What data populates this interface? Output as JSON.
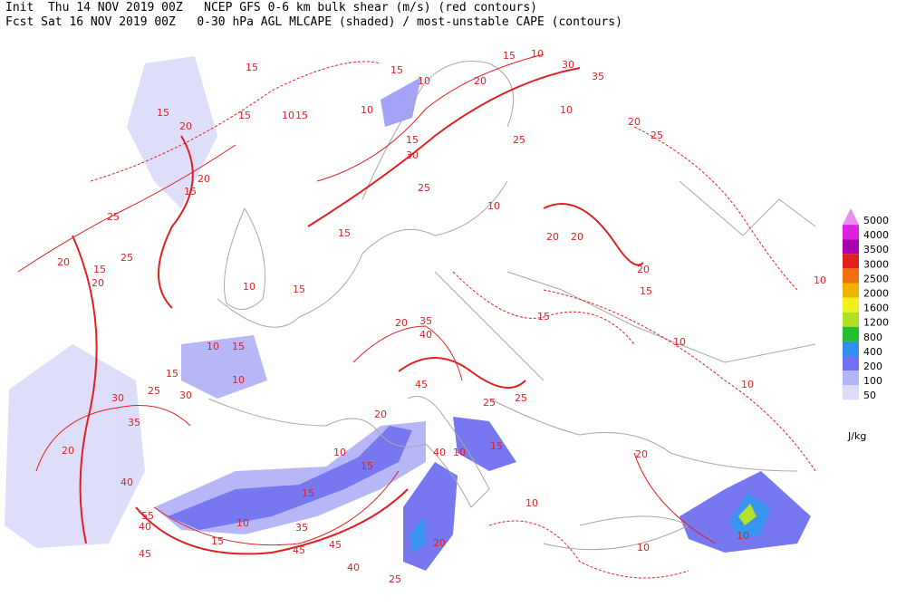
{
  "header": {
    "line1": "Init  Thu 14 NOV 2019 00Z   NCEP GFS 0-6 km bulk shear (m/s) (red contours)",
    "line2": "Fcst Sat 16 NOV 2019 00Z   0-30 hPa AGL MLCAPE (shaded) / most-unstable CAPE (contours)"
  },
  "legend": {
    "unit": "J/kg",
    "items": [
      {
        "label": 5000,
        "color": "#e890f0"
      },
      {
        "label": 4000,
        "color": "#e020e0"
      },
      {
        "label": 3500,
        "color": "#a800b0"
      },
      {
        "label": 3000,
        "color": "#e02020"
      },
      {
        "label": 2500,
        "color": "#f07010"
      },
      {
        "label": 2000,
        "color": "#f0b400"
      },
      {
        "label": 1600,
        "color": "#f0f020"
      },
      {
        "label": 1200,
        "color": "#b0e020"
      },
      {
        "label": 800,
        "color": "#20c030"
      },
      {
        "label": 400,
        "color": "#3090f0"
      },
      {
        "label": 200,
        "color": "#7070f0"
      },
      {
        "label": 100,
        "color": "#b4b4f8"
      },
      {
        "label": 50,
        "color": "#dcdcfa"
      }
    ]
  },
  "contour_labels": [
    15,
    20,
    15,
    10,
    15,
    10,
    15,
    15,
    10,
    15,
    10,
    30,
    35,
    20,
    10,
    20,
    25,
    25,
    15,
    30,
    25,
    10,
    20,
    20,
    20,
    15,
    10,
    10,
    10,
    15,
    25,
    25,
    20,
    15,
    20,
    15,
    20,
    15,
    10,
    15,
    10,
    15,
    10,
    15,
    30,
    35,
    20,
    40,
    25,
    30,
    20,
    35,
    40,
    45,
    20,
    10,
    15,
    15,
    10,
    35,
    15,
    55,
    40,
    45,
    45,
    45,
    40,
    25,
    20,
    40,
    10,
    25,
    25,
    15,
    10,
    10,
    20,
    10
  ]
}
